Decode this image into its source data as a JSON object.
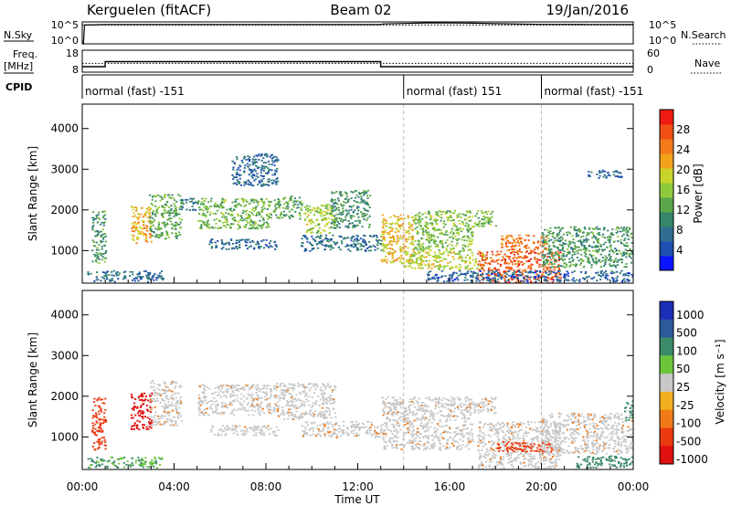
{
  "header": {
    "station": "Kerguelen (fitACF)",
    "beam": "Beam 02",
    "date": "19/Jan/2016"
  },
  "panels": {
    "nsky_label": "N.Sky",
    "nsky_ticks": [
      "10^5",
      "10^0"
    ],
    "nsearch_label": "N.Search",
    "nsearch_ticks": [
      "10^5",
      "10^0"
    ],
    "freq_label_1": "Freq.",
    "freq_label_2": "[MHz]",
    "freq_ticks": [
      "18",
      "8"
    ],
    "nave_label": "Nave",
    "nave_ticks": [
      "60",
      "0"
    ],
    "cpid_label": "CPID",
    "cpid_segments": [
      {
        "label": "normal (fast) -151",
        "start_hr": 0,
        "end_hr": 14
      },
      {
        "label": "normal (fast) 151",
        "start_hr": 14,
        "end_hr": 20
      },
      {
        "label": "normal (fast) -151",
        "start_hr": 20,
        "end_hr": 24
      }
    ]
  },
  "colors": {
    "power": [
      "#0a14ff",
      "#1f4fb0",
      "#2f6e90",
      "#35866a",
      "#5aa64a",
      "#8fca3c",
      "#c9d42a",
      "#f2a21b",
      "#f47a1b",
      "#f05015",
      "#ee1c12"
    ],
    "velocity": [
      "#1a2fb8",
      "#2c5a9a",
      "#3b8a6a",
      "#6cc63c",
      "#c8c8c8",
      "#f0b020",
      "#f07a18",
      "#ea3a10",
      "#e01010"
    ]
  },
  "chart_data": [
    {
      "type": "line",
      "title": "N.Sky / N.Search",
      "x_unit": "hours UT",
      "xlim": [
        0,
        24
      ],
      "y_scale": "log",
      "ylim": [
        1,
        100000
      ],
      "series": [
        {
          "name": "N.Sky",
          "style": "solid",
          "x": [
            0,
            0.05,
            0.1,
            1,
            4,
            8,
            12,
            13,
            13.1,
            14,
            15,
            16,
            17,
            18,
            20,
            22,
            24
          ],
          "y": [
            1,
            1,
            20000,
            25000,
            25000,
            25000,
            25000,
            25000,
            35000,
            45000,
            60000,
            55000,
            50000,
            40000,
            28000,
            26000,
            25000
          ]
        },
        {
          "name": "N.Search",
          "style": "dotted",
          "x": [
            0,
            24
          ],
          "y": [
            20000,
            20000
          ]
        }
      ]
    },
    {
      "type": "line",
      "title": "Freq. / Nave",
      "x_unit": "hours UT",
      "xlim": [
        0,
        24
      ],
      "y_left": "Freq. [MHz]",
      "ylim_left": [
        8,
        18
      ],
      "y_right": "Nave",
      "ylim_right": [
        0,
        60
      ],
      "series": [
        {
          "name": "Freq.",
          "style": "solid",
          "x": [
            0,
            1,
            1,
            13,
            13,
            24
          ],
          "y": [
            10.5,
            10.5,
            12.8,
            12.8,
            10.5,
            10.5
          ]
        },
        {
          "name": "Nave",
          "style": "dotted",
          "x": [
            0,
            24
          ],
          "y": [
            24,
            24
          ]
        }
      ]
    },
    {
      "type": "heatmap",
      "title": "Power",
      "xlabel": "Time UT",
      "ylabel": "Slant Range [km]",
      "xlim": [
        0,
        24
      ],
      "ylim": [
        200,
        4600
      ],
      "yticks": [
        "1000",
        "2000",
        "3000",
        "4000"
      ],
      "colorbar_label": "Power [dB]",
      "colorbar_ticks": [
        "4",
        "8",
        "12",
        "16",
        "20",
        "24",
        "28"
      ],
      "colorbar_range": [
        0,
        32
      ],
      "echo_regions": [
        {
          "t0": 0.2,
          "t1": 3.5,
          "r0": 250,
          "r1": 520,
          "value": 6
        },
        {
          "t0": 0.4,
          "t1": 1.0,
          "r0": 700,
          "r1": 2000,
          "value": 11
        },
        {
          "t0": 2.1,
          "t1": 3.0,
          "r0": 1200,
          "r1": 2100,
          "value": 22
        },
        {
          "t0": 2.9,
          "t1": 4.3,
          "r0": 1300,
          "r1": 2400,
          "value": 13
        },
        {
          "t0": 4.2,
          "t1": 5.0,
          "r0": 2000,
          "r1": 2300,
          "value": 8
        },
        {
          "t0": 5.0,
          "t1": 8.2,
          "r0": 1550,
          "r1": 2300,
          "value": 14
        },
        {
          "t0": 6.5,
          "t1": 8.5,
          "r0": 2600,
          "r1": 3400,
          "value": 6
        },
        {
          "t0": 8.3,
          "t1": 9.6,
          "r0": 1800,
          "r1": 2350,
          "value": 12
        },
        {
          "t0": 9.6,
          "t1": 11.0,
          "r0": 1450,
          "r1": 2150,
          "value": 17
        },
        {
          "t0": 9.5,
          "t1": 13.0,
          "r0": 1000,
          "r1": 1400,
          "value": 7
        },
        {
          "t0": 5.5,
          "t1": 8.5,
          "r0": 1050,
          "r1": 1300,
          "value": 6
        },
        {
          "t0": 10.8,
          "t1": 12.5,
          "r0": 1550,
          "r1": 2500,
          "value": 10
        },
        {
          "t0": 13.0,
          "t1": 14.4,
          "r0": 700,
          "r1": 1900,
          "value": 21
        },
        {
          "t0": 14.4,
          "t1": 17.0,
          "r0": 1000,
          "r1": 2000,
          "value": 15
        },
        {
          "t0": 14.0,
          "t1": 17.5,
          "r0": 550,
          "r1": 1000,
          "value": 18
        },
        {
          "t0": 17.0,
          "t1": 18.0,
          "r0": 1600,
          "r1": 2000,
          "value": 14
        },
        {
          "t0": 17.2,
          "t1": 20.8,
          "r0": 200,
          "r1": 1000,
          "value": 28
        },
        {
          "t0": 18.2,
          "t1": 20.2,
          "r0": 1000,
          "r1": 1400,
          "value": 26
        },
        {
          "t0": 20.0,
          "t1": 24.0,
          "r0": 600,
          "r1": 1600,
          "value": 11
        },
        {
          "t0": 15.0,
          "t1": 24.0,
          "r0": 250,
          "r1": 520,
          "value": 5
        },
        {
          "t0": 22.0,
          "t1": 23.5,
          "r0": 2800,
          "r1": 3000,
          "value": 6
        }
      ]
    },
    {
      "type": "heatmap",
      "title": "Velocity",
      "xlabel": "Time UT",
      "ylabel": "Slant Range [km]",
      "xlim": [
        0,
        24
      ],
      "ylim": [
        200,
        4600
      ],
      "xticks": [
        "00:00",
        "04:00",
        "08:00",
        "12:00",
        "16:00",
        "20:00",
        "00:00"
      ],
      "yticks": [
        "1000",
        "2000",
        "3000",
        "4000"
      ],
      "colorbar_label": "Velocity [m s⁻¹]",
      "colorbar_ticks": [
        "1000",
        "500",
        "100",
        "50",
        "25",
        "-25",
        "-100",
        "-500",
        "-1000"
      ],
      "echo_regions": [
        {
          "t0": 0.2,
          "t1": 3.5,
          "r0": 250,
          "r1": 520,
          "value": 100
        },
        {
          "t0": 0.4,
          "t1": 1.0,
          "r0": 700,
          "r1": 2000,
          "value": -300
        },
        {
          "t0": 2.1,
          "t1": 3.0,
          "r0": 1200,
          "r1": 2100,
          "value": -700
        },
        {
          "t0": 2.9,
          "t1": 4.3,
          "r0": 1300,
          "r1": 2400,
          "value": 0
        },
        {
          "t0": 5.0,
          "t1": 8.2,
          "r0": 1550,
          "r1": 2300,
          "value": 0
        },
        {
          "t0": 8.3,
          "t1": 11.0,
          "r0": 1450,
          "r1": 2350,
          "value": 0
        },
        {
          "t0": 9.5,
          "t1": 13.0,
          "r0": 1000,
          "r1": 1400,
          "value": 0
        },
        {
          "t0": 5.5,
          "t1": 8.5,
          "r0": 1050,
          "r1": 1300,
          "value": 0
        },
        {
          "t0": 13.0,
          "t1": 17.0,
          "r0": 700,
          "r1": 2000,
          "value": 0
        },
        {
          "t0": 17.0,
          "t1": 18.0,
          "r0": 1600,
          "r1": 2000,
          "value": 0
        },
        {
          "t0": 17.2,
          "t1": 20.8,
          "r0": 200,
          "r1": 1400,
          "value": 0
        },
        {
          "t0": 18.0,
          "t1": 20.5,
          "r0": 650,
          "r1": 900,
          "value": -150
        },
        {
          "t0": 20.0,
          "t1": 24.0,
          "r0": 600,
          "r1": 1600,
          "value": 0
        },
        {
          "t0": 21.5,
          "t1": 24.0,
          "r0": 250,
          "r1": 550,
          "value": 150
        },
        {
          "t0": 23.6,
          "t1": 24.0,
          "r0": 1400,
          "r1": 1900,
          "value": 300
        }
      ]
    }
  ]
}
